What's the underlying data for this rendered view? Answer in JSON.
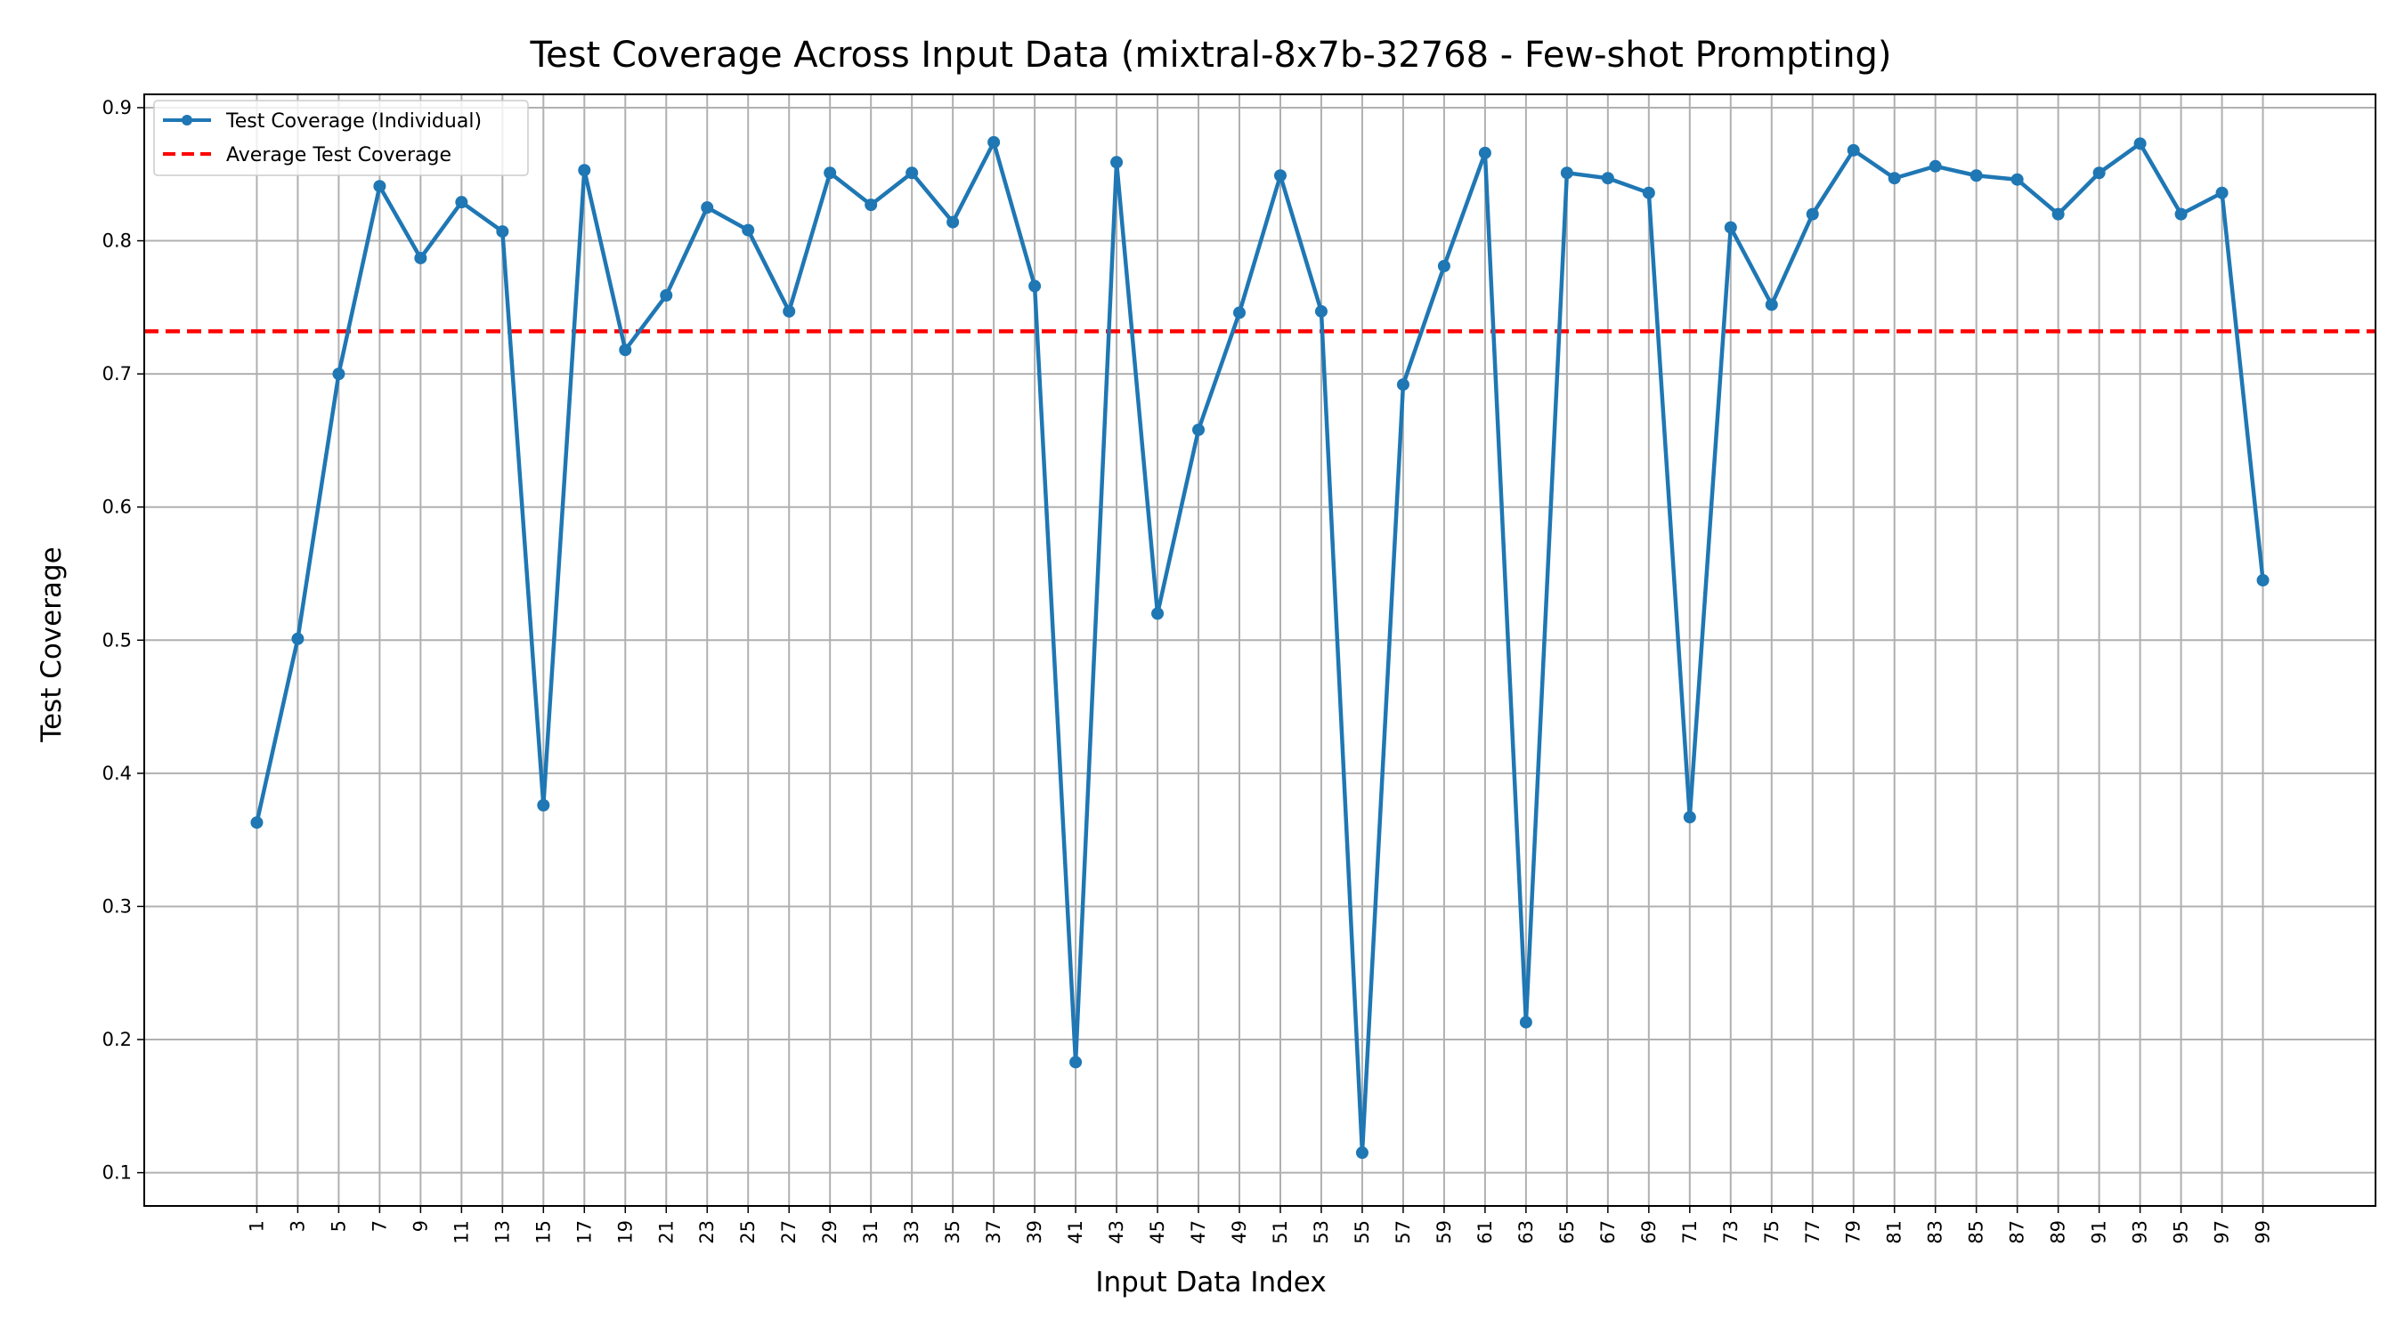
{
  "chart_data": {
    "type": "line",
    "title": "Test Coverage Across Input Data (mixtral-8x7b-32768 - Few-shot Prompting)",
    "xlabel": "Input Data Index",
    "ylabel": "Test Coverage",
    "x": [
      1,
      3,
      5,
      7,
      9,
      11,
      13,
      15,
      17,
      19,
      21,
      23,
      25,
      27,
      29,
      31,
      33,
      35,
      37,
      39,
      41,
      43,
      45,
      47,
      49,
      51,
      53,
      55,
      57,
      59,
      61,
      63,
      65,
      67,
      69,
      71,
      73,
      75,
      77,
      79,
      81,
      83,
      85,
      87,
      89,
      91,
      93,
      95,
      97,
      99
    ],
    "x_tick_labels": [
      "1",
      "3",
      "5",
      "7",
      "9",
      "11",
      "13",
      "15",
      "17",
      "19",
      "21",
      "23",
      "25",
      "27",
      "29",
      "31",
      "33",
      "35",
      "37",
      "39",
      "41",
      "43",
      "45",
      "47",
      "49",
      "51",
      "53",
      "55",
      "57",
      "59",
      "61",
      "63",
      "65",
      "67",
      "69",
      "71",
      "73",
      "75",
      "77",
      "79",
      "81",
      "83",
      "85",
      "87",
      "89",
      "91",
      "93",
      "95",
      "97",
      "99"
    ],
    "y_tick_labels": [
      "0.1",
      "0.2",
      "0.3",
      "0.4",
      "0.5",
      "0.6",
      "0.7",
      "0.8",
      "0.9"
    ],
    "y_ticks": [
      0.1,
      0.2,
      0.3,
      0.4,
      0.5,
      0.6,
      0.7,
      0.8,
      0.9
    ],
    "xlim": [
      -4.5,
      104.5
    ],
    "ylim": [
      0.075,
      0.91
    ],
    "grid": true,
    "legend_position": "top-left",
    "series": [
      {
        "name": "Test Coverage (Individual)",
        "color": "#1f77b4",
        "style": "solid-with-markers",
        "values": [
          0.363,
          0.501,
          0.7,
          0.841,
          0.787,
          0.829,
          0.807,
          0.376,
          0.853,
          0.718,
          0.759,
          0.825,
          0.808,
          0.747,
          0.851,
          0.827,
          0.851,
          0.814,
          0.874,
          0.766,
          0.183,
          0.859,
          0.52,
          0.658,
          0.746,
          0.849,
          0.747,
          0.115,
          0.692,
          0.781,
          0.866,
          0.213,
          0.851,
          0.847,
          0.836,
          0.367,
          0.81,
          0.752,
          0.82,
          0.868,
          0.847,
          0.856,
          0.849,
          0.846,
          0.82,
          0.851,
          0.873,
          0.82,
          0.836,
          0.545
        ]
      },
      {
        "name": "Average Test Coverage",
        "color": "#ff0000",
        "style": "dashed",
        "value": 0.732
      }
    ]
  }
}
